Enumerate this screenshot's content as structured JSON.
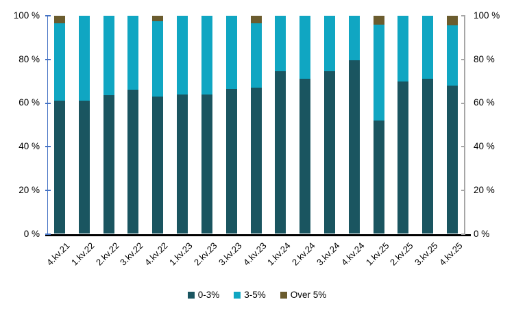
{
  "chart_data": {
    "type": "bar",
    "stacked": true,
    "title": "",
    "xlabel": "",
    "ylabel": "",
    "unit": "%",
    "categories": [
      "4.kv.21",
      "1.kv.22",
      "2.kv.22",
      "3.kv.22",
      "4.kv.22",
      "1.kv.23",
      "2.kv.23",
      "3.kv.23",
      "4.kv.23",
      "1.kv.24",
      "2.kv.24",
      "3.kv.24",
      "4.kv.24",
      "1.kv.25",
      "2.kv.25",
      "3.kv.25",
      "4.kv.25"
    ],
    "series": [
      {
        "name": "0-3%",
        "color": "#1A5560",
        "values": [
          61,
          61,
          63.5,
          66,
          63,
          64,
          64,
          66.5,
          67,
          74.5,
          71,
          74.5,
          79.5,
          52,
          70,
          71,
          68
        ]
      },
      {
        "name": "3-5%",
        "color": "#10A6C2",
        "values": [
          35.5,
          39,
          36.5,
          34,
          34.5,
          36,
          36,
          33.5,
          29.5,
          25.5,
          29,
          25.5,
          20.5,
          44,
          30,
          29,
          27.5
        ]
      },
      {
        "name": "Over 5%",
        "color": "#6B5C2E",
        "values": [
          3.5,
          0,
          0,
          0,
          2.5,
          0,
          0,
          0,
          3.5,
          0,
          0,
          0,
          0,
          4,
          0,
          0,
          4.5
        ]
      }
    ],
    "ylim": [
      0,
      100
    ],
    "yticks": [
      0,
      20,
      40,
      60,
      80,
      100
    ],
    "ytick_labels": [
      "0 %",
      "20 %",
      "40 %",
      "60 %",
      "80 %",
      "100 %"
    ],
    "grid": false,
    "legend_position": "bottom",
    "axes": {
      "left_axis_color": "#4472C4",
      "right_axis_color": "#A6A6A6",
      "bottom_axis_color": "#000000",
      "dual_y_axis": true
    }
  }
}
